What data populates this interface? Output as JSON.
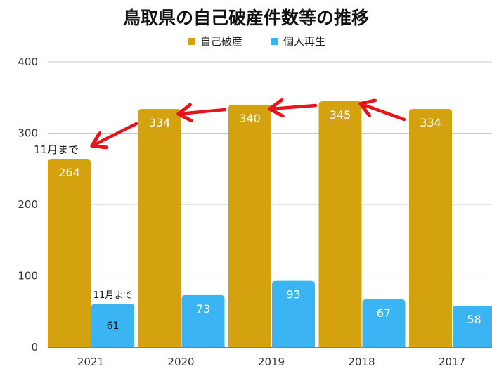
{
  "chart_data": {
    "type": "bar",
    "title": "鳥取県の自己破産件数等の推移",
    "categories": [
      "2021",
      "2020",
      "2019",
      "2018",
      "2017"
    ],
    "series": [
      {
        "name": "自己破産",
        "values": [
          264,
          334,
          340,
          345,
          334
        ],
        "color": "#D4A20F"
      },
      {
        "name": "個人再生",
        "values": [
          61,
          73,
          93,
          67,
          58
        ],
        "color": "#3AB4F2"
      }
    ],
    "ylim": [
      0,
      400
    ],
    "yticks": [
      0,
      100,
      200,
      300,
      400
    ],
    "grid": true,
    "legend_position": "top-center",
    "annotations": [
      {
        "text": "11月まで",
        "category": "2021",
        "series": "自己破産"
      },
      {
        "text": "11月まで",
        "category": "2021",
        "series": "個人再生"
      }
    ],
    "arrow_color": "#E8141B"
  }
}
